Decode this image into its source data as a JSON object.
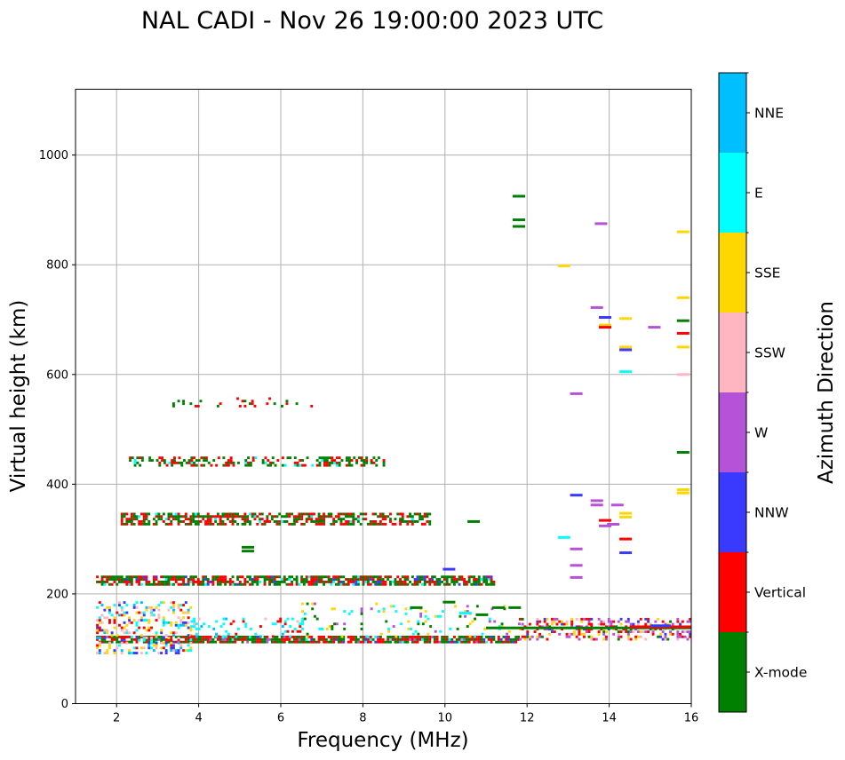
{
  "chart_data": {
    "type": "scatter",
    "title": "NAL CADI - Nov 26 19:00:00 2023 UTC",
    "xlabel": "Frequency (MHz)",
    "ylabel": "Virtual height (km)",
    "xlim": [
      1,
      16
    ],
    "ylim": [
      0,
      1120
    ],
    "xticks": [
      2,
      4,
      6,
      8,
      10,
      12,
      14,
      16
    ],
    "yticks": [
      0,
      200,
      400,
      600,
      800,
      1000
    ],
    "grid": true,
    "colorbar": {
      "title": "Azimuth Direction",
      "categories": [
        {
          "name": "X-mode",
          "color": "#008000"
        },
        {
          "name": "Vertical",
          "color": "#ff0000"
        },
        {
          "name": "NNW",
          "color": "#3a3aff"
        },
        {
          "name": "W",
          "color": "#b452d8"
        },
        {
          "name": "SSW",
          "color": "#ffb6c1"
        },
        {
          "name": "SSE",
          "color": "#ffd700"
        },
        {
          "name": "E",
          "color": "#00ffff"
        },
        {
          "name": "NNE",
          "color": "#00bfff"
        }
      ]
    },
    "bands": [
      {
        "f0": 1.5,
        "f1": 11.8,
        "h0": 110,
        "h1": 120,
        "density": 0.85,
        "mix": {
          "X-mode": 0.45,
          "Vertical": 0.42,
          "W": 0.05,
          "NNW": 0.04,
          "E": 0.04
        }
      },
      {
        "f0": 1.5,
        "f1": 3.8,
        "h0": 90,
        "h1": 185,
        "density": 0.3,
        "mix": {
          "SSE": 0.25,
          "SSW": 0.2,
          "E": 0.15,
          "NNE": 0.1,
          "Vertical": 0.15,
          "NNW": 0.15
        }
      },
      {
        "f0": 3.8,
        "f1": 6.5,
        "h0": 120,
        "h1": 155,
        "density": 0.2,
        "mix": {
          "E": 0.6,
          "NNE": 0.1,
          "SSW": 0.1,
          "Vertical": 0.2
        }
      },
      {
        "f0": 6.5,
        "f1": 11.8,
        "h0": 120,
        "h1": 180,
        "density": 0.08,
        "mix": {
          "E": 0.3,
          "SSE": 0.3,
          "W": 0.2,
          "X-mode": 0.2
        }
      },
      {
        "f0": 1.5,
        "f1": 11.2,
        "h0": 215,
        "h1": 232,
        "density": 0.75,
        "mix": {
          "X-mode": 0.5,
          "Vertical": 0.4,
          "E": 0.05,
          "NNW": 0.05
        }
      },
      {
        "f0": 2.1,
        "f1": 9.6,
        "h0": 325,
        "h1": 345,
        "density": 0.6,
        "mix": {
          "X-mode": 0.5,
          "Vertical": 0.45,
          "E": 0.05
        }
      },
      {
        "f0": 2.3,
        "f1": 8.5,
        "h0": 432,
        "h1": 450,
        "density": 0.4,
        "mix": {
          "X-mode": 0.6,
          "Vertical": 0.35,
          "E": 0.05
        }
      },
      {
        "f0": 3.3,
        "f1": 6.8,
        "h0": 540,
        "h1": 555,
        "density": 0.12,
        "mix": {
          "Vertical": 0.5,
          "X-mode": 0.4,
          "E": 0.1
        }
      },
      {
        "f0": 11.8,
        "f1": 16.0,
        "h0": 115,
        "h1": 155,
        "density": 0.35,
        "mix": {
          "Vertical": 0.35,
          "W": 0.25,
          "SSE": 0.15,
          "NNW": 0.1,
          "SSW": 0.1,
          "X-mode": 0.05
        }
      }
    ],
    "traces": [
      {
        "f0": 11.0,
        "f1": 16.0,
        "h": 138,
        "dir": "X-mode"
      },
      {
        "f0": 14.5,
        "f1": 16.0,
        "h": 140,
        "dir": "Vertical"
      },
      {
        "f0": 15.0,
        "f1": 15.5,
        "h": 142,
        "dir": "NNW"
      }
    ],
    "points": [
      {
        "f": 11.8,
        "h": 925,
        "dir": "X-mode"
      },
      {
        "f": 11.8,
        "h": 882,
        "dir": "X-mode"
      },
      {
        "f": 11.8,
        "h": 870,
        "dir": "X-mode"
      },
      {
        "f": 13.8,
        "h": 875,
        "dir": "W"
      },
      {
        "f": 15.8,
        "h": 860,
        "dir": "SSE"
      },
      {
        "f": 12.9,
        "h": 798,
        "dir": "SSE"
      },
      {
        "f": 15.8,
        "h": 740,
        "dir": "SSE"
      },
      {
        "f": 13.7,
        "h": 722,
        "dir": "W"
      },
      {
        "f": 13.9,
        "h": 704,
        "dir": "NNW"
      },
      {
        "f": 14.4,
        "h": 702,
        "dir": "SSE"
      },
      {
        "f": 15.8,
        "h": 698,
        "dir": "X-mode"
      },
      {
        "f": 13.9,
        "h": 690,
        "dir": "SSE"
      },
      {
        "f": 13.9,
        "h": 686,
        "dir": "Vertical"
      },
      {
        "f": 15.1,
        "h": 686,
        "dir": "W"
      },
      {
        "f": 15.8,
        "h": 675,
        "dir": "Vertical"
      },
      {
        "f": 14.4,
        "h": 650,
        "dir": "SSE"
      },
      {
        "f": 15.8,
        "h": 650,
        "dir": "SSE"
      },
      {
        "f": 14.4,
        "h": 645,
        "dir": "NNW"
      },
      {
        "f": 14.4,
        "h": 605,
        "dir": "E"
      },
      {
        "f": 15.8,
        "h": 600,
        "dir": "SSW"
      },
      {
        "f": 13.2,
        "h": 565,
        "dir": "W"
      },
      {
        "f": 15.8,
        "h": 458,
        "dir": "X-mode"
      },
      {
        "f": 15.8,
        "h": 390,
        "dir": "SSE"
      },
      {
        "f": 15.8,
        "h": 384,
        "dir": "SSE"
      },
      {
        "f": 13.2,
        "h": 380,
        "dir": "NNW"
      },
      {
        "f": 13.7,
        "h": 370,
        "dir": "W"
      },
      {
        "f": 13.7,
        "h": 362,
        "dir": "W"
      },
      {
        "f": 14.2,
        "h": 362,
        "dir": "W"
      },
      {
        "f": 14.4,
        "h": 347,
        "dir": "SSE"
      },
      {
        "f": 14.4,
        "h": 340,
        "dir": "SSE"
      },
      {
        "f": 13.9,
        "h": 334,
        "dir": "Vertical"
      },
      {
        "f": 14.1,
        "h": 327,
        "dir": "W"
      },
      {
        "f": 13.9,
        "h": 324,
        "dir": "W"
      },
      {
        "f": 12.9,
        "h": 303,
        "dir": "E"
      },
      {
        "f": 14.4,
        "h": 300,
        "dir": "Vertical"
      },
      {
        "f": 13.2,
        "h": 282,
        "dir": "W"
      },
      {
        "f": 14.4,
        "h": 275,
        "dir": "NNW"
      },
      {
        "f": 13.2,
        "h": 252,
        "dir": "W"
      },
      {
        "f": 13.2,
        "h": 230,
        "dir": "W"
      },
      {
        "f": 10.1,
        "h": 245,
        "dir": "NNW"
      },
      {
        "f": 10.7,
        "h": 332,
        "dir": "X-mode"
      },
      {
        "f": 5.2,
        "h": 285,
        "dir": "X-mode"
      },
      {
        "f": 5.2,
        "h": 278,
        "dir": "X-mode"
      },
      {
        "f": 9.3,
        "h": 175,
        "dir": "X-mode"
      },
      {
        "f": 10.1,
        "h": 185,
        "dir": "X-mode"
      },
      {
        "f": 11.3,
        "h": 175,
        "dir": "X-mode"
      },
      {
        "f": 11.7,
        "h": 175,
        "dir": "X-mode"
      },
      {
        "f": 10.5,
        "h": 165,
        "dir": "E"
      },
      {
        "f": 10.9,
        "h": 162,
        "dir": "X-mode"
      }
    ]
  }
}
